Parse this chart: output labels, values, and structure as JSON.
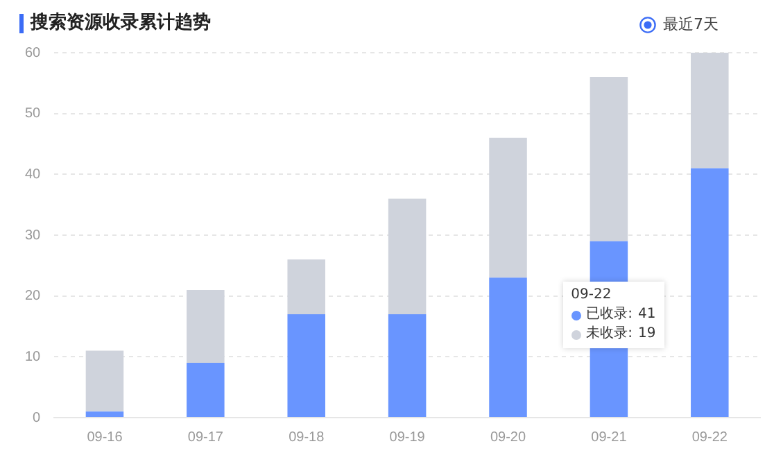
{
  "chart_data": {
    "type": "bar",
    "title": "搜索资源收录累计趋势",
    "annotations": [
      "最近7天",
      "09-22",
      "41",
      "19"
    ],
    "stacked": true,
    "categories": [
      "09-16",
      "09-17",
      "09-18",
      "09-19",
      "09-20",
      "09-21",
      "09-22"
    ],
    "series": [
      {
        "name": "已收录:",
        "color": "#6995ff",
        "values": [
          1,
          9,
          17,
          17,
          23,
          29,
          41
        ]
      },
      {
        "name": "未收录:",
        "color": "#cfd3dc",
        "values": [
          10,
          12,
          9,
          19,
          23,
          27,
          19
        ]
      }
    ],
    "ylim": [
      0,
      60
    ],
    "yticks": [
      0,
      10,
      20,
      30,
      40,
      50,
      60
    ],
    "grid": "y",
    "legend": "right"
  }
}
